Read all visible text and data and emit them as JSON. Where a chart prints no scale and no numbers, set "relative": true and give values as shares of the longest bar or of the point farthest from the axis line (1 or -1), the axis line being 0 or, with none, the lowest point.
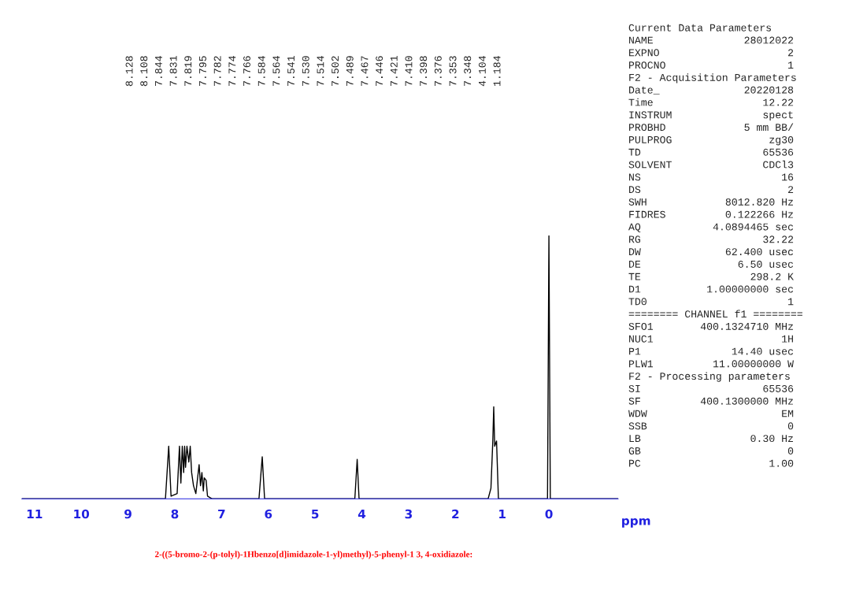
{
  "chart_data": {
    "type": "line",
    "relative": true,
    "title": "2-((5-bromo-2-(p-tolyl)-1Hbenzo[d]imidazole-1-yl)methyl)-5-phenyl-1 3, 4-oxidiazole:",
    "xlabel": "ppm",
    "x": [
      11.27,
      8.2,
      8.13,
      8.08,
      7.95,
      7.9,
      7.87,
      7.84,
      7.81,
      7.79,
      7.77,
      7.74,
      7.7,
      7.67,
      7.64,
      7.6,
      7.55,
      7.48,
      7.45,
      7.42,
      7.39,
      7.37,
      7.33,
      7.3,
      7.2,
      6.2,
      6.13,
      6.08,
      4.15,
      4.1,
      4.06,
      1.3,
      1.24,
      1.2,
      1.18,
      1.16,
      1.12,
      1.08,
      0.03,
      0.0,
      -0.03,
      -1.48
    ],
    "series": [
      {
        "color": "#000000",
        "values": [
          0,
          0,
          0.2,
          0.01,
          0.02,
          0.2,
          0.06,
          0.2,
          0.1,
          0.2,
          0.12,
          0.2,
          0.14,
          0.2,
          0.1,
          0.05,
          0.02,
          0.13,
          0.05,
          0.1,
          0.03,
          0.08,
          0.07,
          0.01,
          0,
          0,
          0.16,
          0,
          0,
          0.15,
          0,
          0,
          0.04,
          0.22,
          0.35,
          0.2,
          0.22,
          0,
          0,
          1.0,
          0,
          0
        ]
      }
    ],
    "xlim": [
      11.27,
      -1.48
    ],
    "xticks": [
      11,
      10,
      9,
      8,
      7,
      6,
      5,
      4,
      3,
      2,
      1,
      0
    ],
    "grid": false,
    "legend": false,
    "marker": "none",
    "line_style": "solid",
    "tick_labels": "x",
    "annotations": [
      "8.128",
      "8.108",
      "7.844",
      "7.831",
      "7.819",
      "7.795",
      "7.782",
      "7.774",
      "7.766",
      "7.584",
      "7.564",
      "7.541",
      "7.530",
      "7.514",
      "7.502",
      "7.489",
      "7.467",
      "7.446",
      "7.421",
      "7.410",
      "7.398",
      "7.376",
      "7.353",
      "7.348",
      "4.104",
      "1.184",
      "Current Data Parameters",
      "NAME\t28012022",
      "EXPNO\t2",
      "PROCNO\t1",
      "F2 - Acquisition Parameters",
      "Date_\t20220128",
      "Time\t12.22",
      "INSTRUM\tspect",
      "PROBHD\t5 mm BB/",
      "PULPROG\tzg30",
      "TD\t65536",
      "SOLVENT\tCDCl3",
      "NS\t16",
      "DS\t2",
      "SWH\t8012.820 Hz",
      "FIDRES\t0.122266 Hz",
      "AQ\t4.0894465 sec",
      "RG\t32.22",
      "DW\t62.400 usec",
      "DE\t6.50 usec",
      "TE\t298.2 K",
      "D1\t1.00000000 sec",
      "TD0\t1",
      "======== CHANNEL f1 ========",
      "SFO1\t400.1324710 MHz",
      "NUC1\t1H",
      "P1\t14.40 usec",
      "PLW1\t11.00000000 W",
      "F2 - Processing parameters",
      "SI\t65536",
      "SF\t400.1300000 MHz",
      "WDW\tEM",
      "SSB\t0",
      "LB\t0.30 Hz",
      "GB\t0",
      "PC\t1.00"
    ]
  }
}
